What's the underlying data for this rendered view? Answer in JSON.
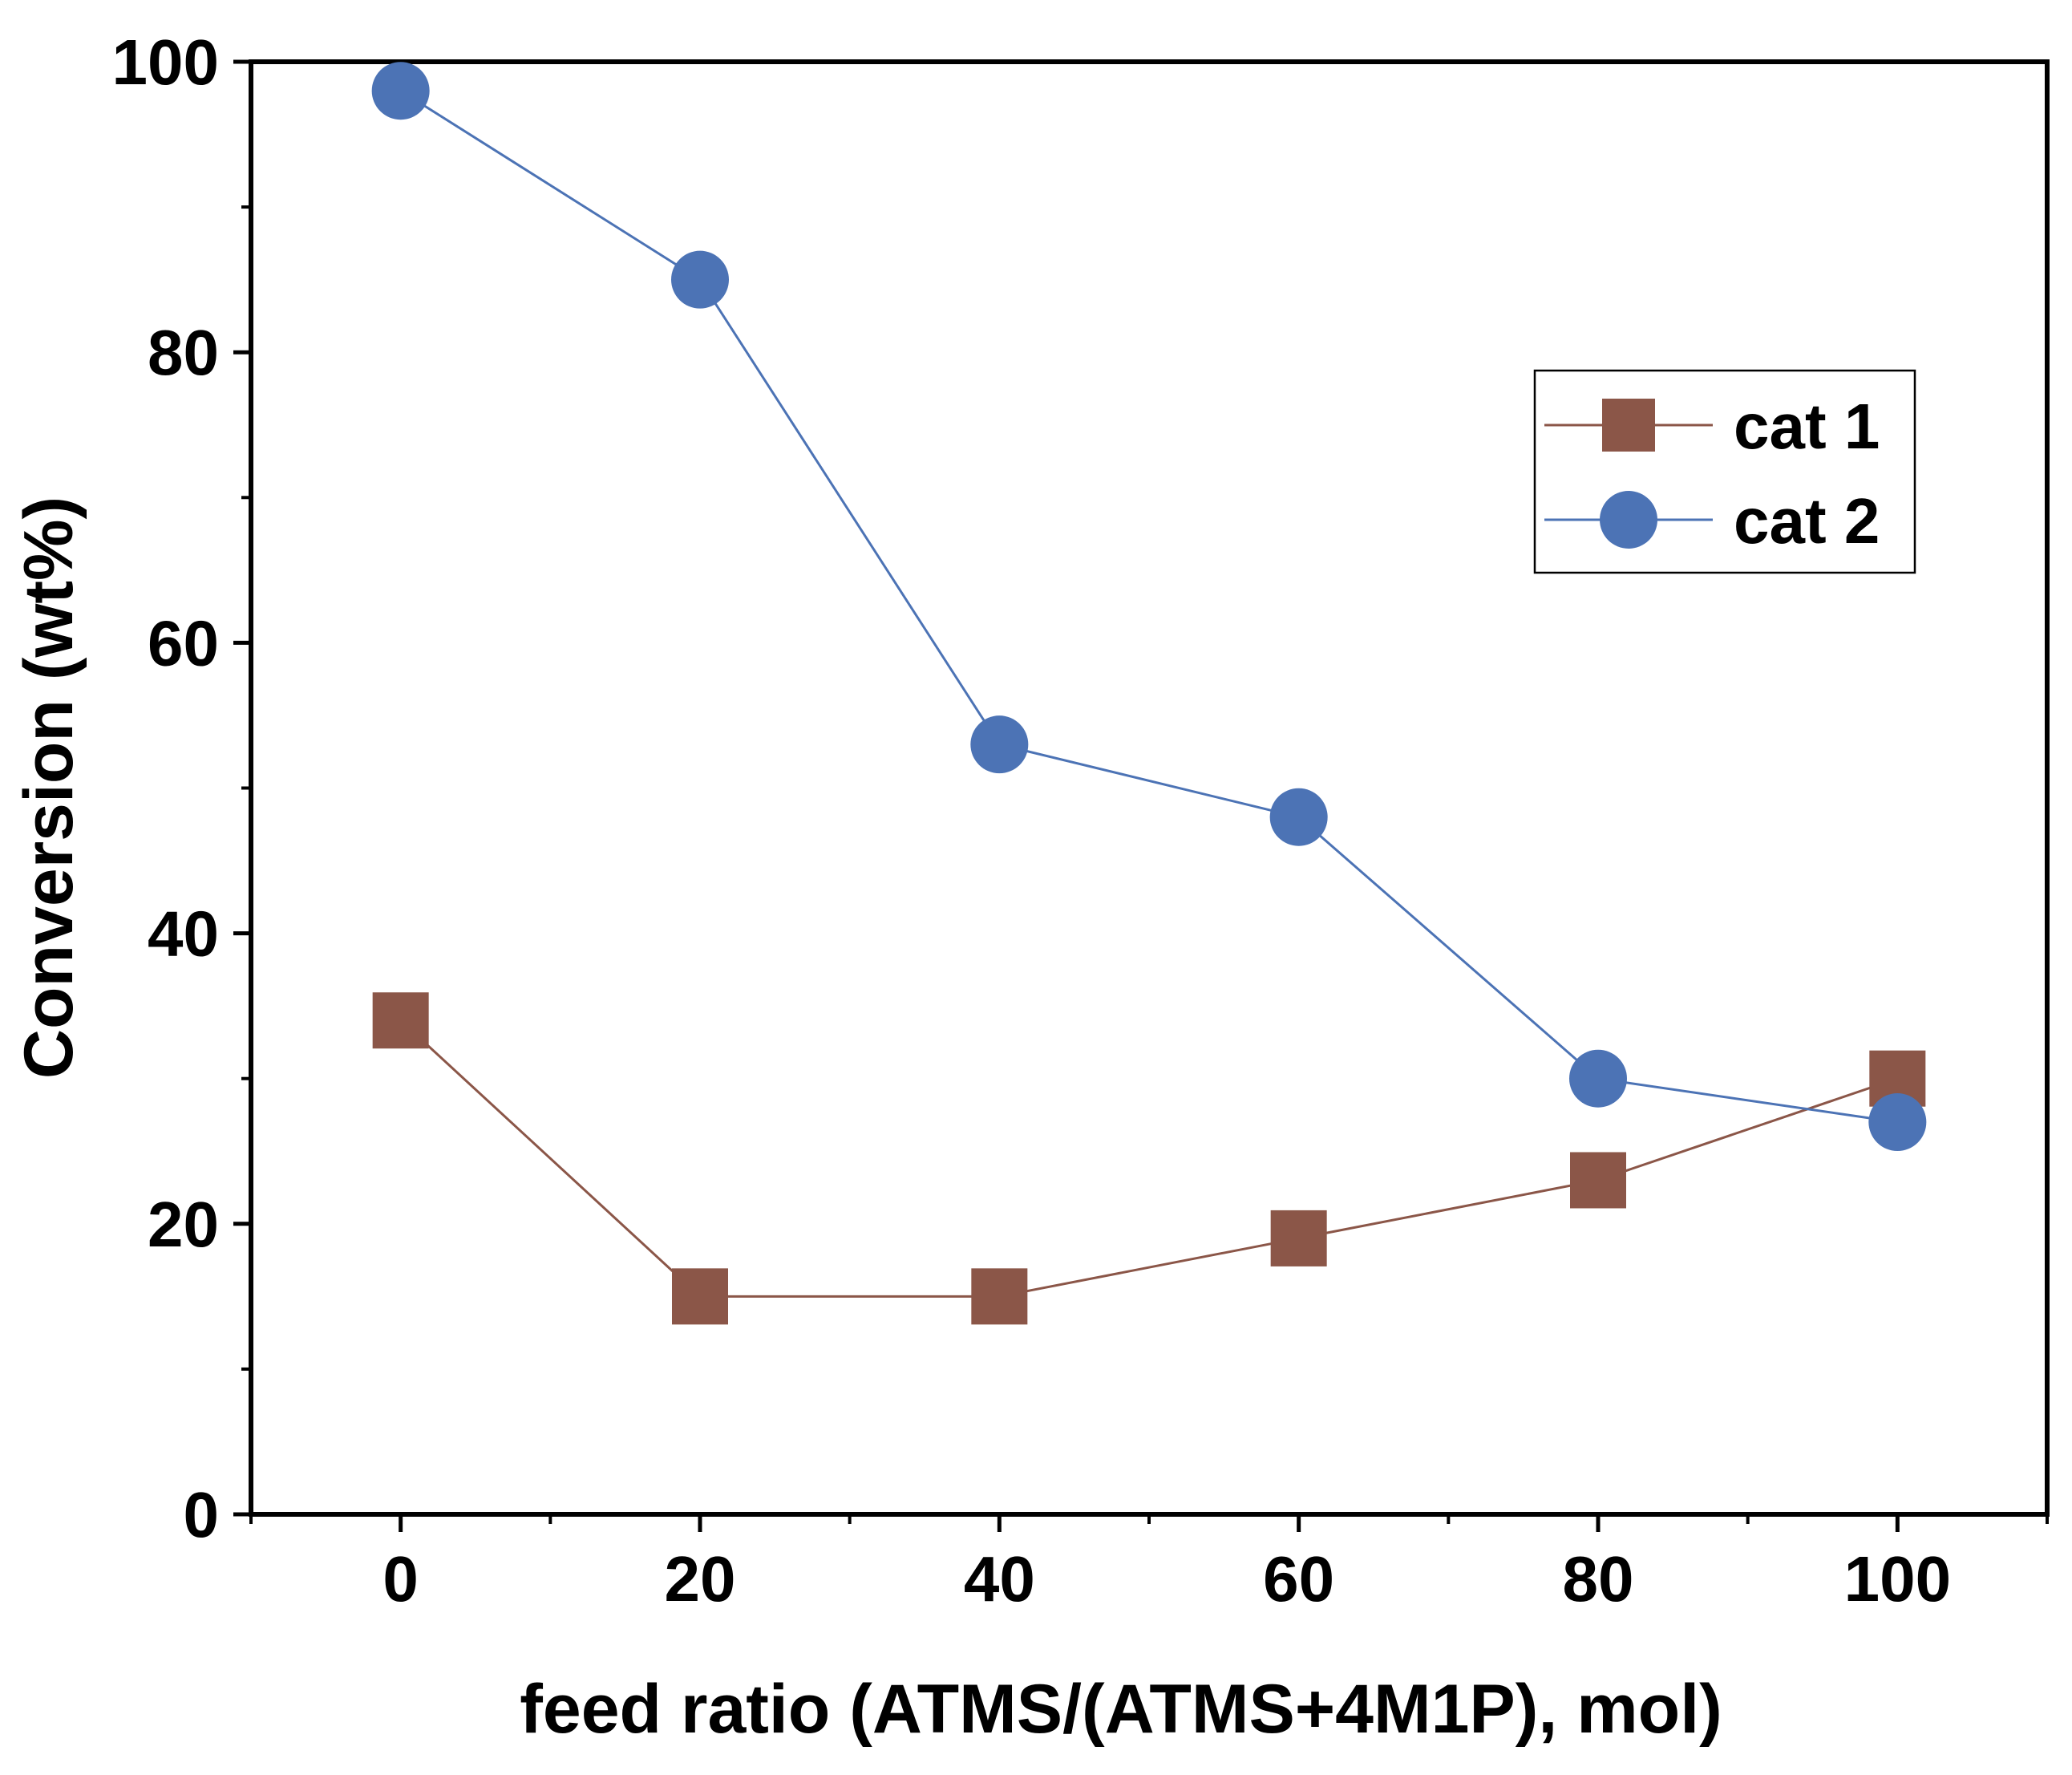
{
  "chart_data": {
    "type": "line",
    "title": "",
    "xlabel": "feed ratio (ATMS/(ATMS+4M1P), mol)",
    "ylabel": "Conversion (wt%)",
    "xlim": [
      -10,
      110
    ],
    "ylim": [
      0,
      100
    ],
    "xticks": [
      0,
      20,
      40,
      60,
      80,
      100
    ],
    "xminor": [
      -10,
      10,
      30,
      50,
      70,
      90,
      110
    ],
    "yticks": [
      0,
      20,
      40,
      60,
      80,
      100
    ],
    "yminor": [
      10,
      30,
      50,
      70,
      90
    ],
    "legend_position": "upper-right",
    "series": [
      {
        "name": "cat 1",
        "marker": "square",
        "color": "#8B5648",
        "x": [
          0,
          20,
          40,
          60,
          80,
          100
        ],
        "values": [
          34,
          15,
          15,
          19,
          23,
          30
        ]
      },
      {
        "name": "cat 2",
        "marker": "circle",
        "color": "#4C73B5",
        "x": [
          0,
          20,
          40,
          60,
          80,
          100
        ],
        "values": [
          98,
          85,
          53,
          48,
          30,
          27
        ]
      }
    ]
  }
}
